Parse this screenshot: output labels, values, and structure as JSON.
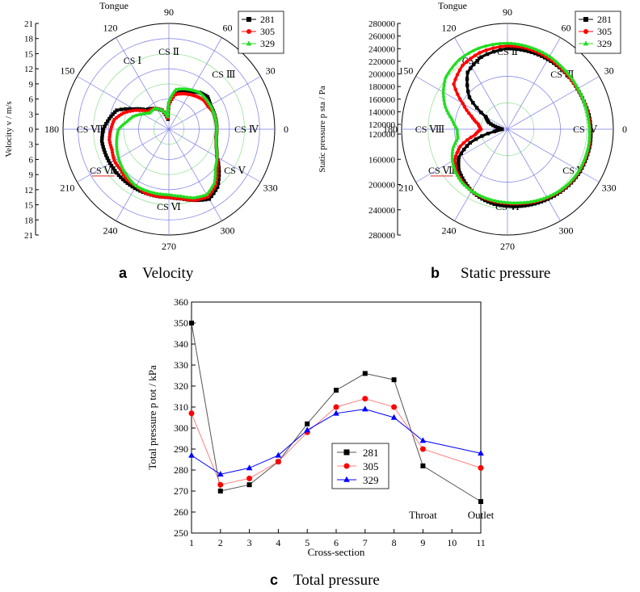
{
  "colors": {
    "s281": "#000000",
    "s305": "#ff0000",
    "s329": "#22dd22",
    "s329_line_c": "#0000ff",
    "s305_line_c": "#ff8080",
    "s281_line_c": "#555555",
    "grid_green": "#8ee08e",
    "grid_blue": "#7a7ae6",
    "underline": "#e05050"
  },
  "icons": {
    "s281": "square-marker-icon",
    "s305": "circle-marker-icon",
    "s329": "triangle-marker-icon"
  },
  "chart_data": [
    {
      "id": "a",
      "type": "line",
      "coordinate_system": "polar",
      "caption_letter": "a",
      "caption_text": "Velocity",
      "radial_label": "Velocity v / m/s",
      "radial_ticks": [
        0,
        3,
        6,
        9,
        12,
        15,
        18,
        21
      ],
      "radial_range": [
        0,
        21
      ],
      "angle_ticks": [
        "0",
        "30",
        "60",
        "90",
        "120",
        "150",
        "180",
        "210",
        "240",
        "270",
        "300",
        "330"
      ],
      "top_label": "Tongue",
      "cs_labels": [
        {
          "text": "CS Ⅱ",
          "angle": 90
        },
        {
          "text": "CS Ⅰ",
          "angle": 118
        },
        {
          "text": "CS Ⅲ",
          "angle": 45
        },
        {
          "text": "CS Ⅳ",
          "angle": 0
        },
        {
          "text": "CS Ⅴ",
          "angle": -32
        },
        {
          "text": "CS Ⅵ",
          "angle": -90
        },
        {
          "text": "CS Ⅶ",
          "angle": 212,
          "underline": true
        },
        {
          "text": "CS Ⅷ",
          "angle": 180
        }
      ],
      "legend": [
        "281",
        "305",
        "329"
      ],
      "legend_position": "top-right",
      "series": [
        {
          "name": "281",
          "theta": [
            95,
            110,
            125,
            140,
            150,
            160,
            170,
            180,
            190,
            200,
            210,
            220,
            230,
            240,
            250,
            260,
            270,
            280,
            290,
            300,
            310,
            320,
            330,
            340,
            350,
            0,
            10,
            20,
            30,
            40,
            50,
            60,
            70,
            80,
            90
          ],
          "r": [
            2,
            4,
            5,
            6,
            8,
            11,
            12,
            13,
            13.5,
            13.5,
            13.5,
            13.5,
            13.5,
            13.5,
            13.5,
            13.5,
            13.5,
            14,
            15,
            16,
            15,
            13,
            11,
            10,
            9.5,
            9.5,
            9.5,
            9.5,
            9.5,
            10,
            9.5,
            8.5,
            8,
            7,
            5
          ]
        },
        {
          "name": "305",
          "theta": [
            95,
            110,
            125,
            140,
            150,
            160,
            170,
            180,
            190,
            200,
            210,
            220,
            230,
            240,
            250,
            260,
            270,
            280,
            290,
            300,
            310,
            320,
            330,
            340,
            350,
            0,
            10,
            20,
            30,
            40,
            50,
            60,
            70,
            80,
            90
          ],
          "r": [
            2.2,
            4,
            5,
            5.5,
            7.5,
            9.5,
            11,
            11.5,
            12,
            12,
            12.5,
            12.5,
            13,
            13,
            13.5,
            13.5,
            13.5,
            14,
            15,
            15.5,
            14.5,
            12.5,
            11,
            10,
            9.5,
            9.5,
            9.5,
            9.5,
            9,
            9,
            8.5,
            8,
            7.5,
            7,
            5
          ]
        },
        {
          "name": "329",
          "theta": [
            95,
            110,
            125,
            140,
            150,
            160,
            170,
            180,
            190,
            200,
            210,
            220,
            230,
            240,
            250,
            260,
            270,
            280,
            290,
            300,
            310,
            320,
            330,
            340,
            350,
            0,
            10,
            20,
            30,
            40,
            50,
            60,
            70,
            80,
            90
          ],
          "r": [
            2.5,
            4,
            5,
            5,
            6,
            7.5,
            8.5,
            10,
            10.5,
            11,
            11.5,
            12,
            12.5,
            13,
            13,
            13,
            13,
            13.5,
            14.5,
            15,
            14,
            12,
            11,
            10,
            9.5,
            9.5,
            9.5,
            9.5,
            9.5,
            9.5,
            9.5,
            9,
            8.5,
            8,
            5.5
          ]
        }
      ]
    },
    {
      "id": "b",
      "type": "line",
      "coordinate_system": "polar",
      "caption_letter": "b",
      "caption_text": "Static pressure",
      "radial_label": "Static pressure p sta / Pa",
      "radial_ticks": [
        120000,
        160000,
        200000,
        240000,
        280000
      ],
      "radial_range": [
        120000,
        280000
      ],
      "radial_top_ticks": [
        "120000",
        "140000",
        "160000",
        "180000",
        "200000",
        "220000",
        "240000",
        "260000",
        "280000"
      ],
      "radial_bottom_ticks": [
        "120000",
        "160000",
        "200000",
        "240000",
        "280000"
      ],
      "angle_ticks": [
        "0",
        "30",
        "60",
        "90",
        "120",
        "150",
        "180",
        "210",
        "240",
        "270",
        "300",
        "330"
      ],
      "top_label": "Tongue",
      "cs_labels": [
        {
          "text": "CS Ⅱ",
          "angle": 90
        },
        {
          "text": "CS Ⅰ",
          "angle": 118
        },
        {
          "text": "CS Ⅲ",
          "angle": 45
        },
        {
          "text": "CS Ⅳ",
          "angle": 0
        },
        {
          "text": "CS Ⅴ",
          "angle": -32
        },
        {
          "text": "CS Ⅵ",
          "angle": -90
        },
        {
          "text": "CS Ⅶ",
          "angle": 212,
          "underline": true
        },
        {
          "text": "CS Ⅷ",
          "angle": 180
        }
      ],
      "legend": [
        "281",
        "305",
        "329"
      ],
      "legend_position": "top-right",
      "series": [
        {
          "name": "281",
          "theta": [
            90,
            110,
            125,
            140,
            150,
            160,
            170,
            180,
            190,
            200,
            210,
            220,
            230,
            240,
            250,
            260,
            270,
            280,
            290,
            300,
            310,
            320,
            330,
            340,
            350,
            0,
            10,
            20,
            30,
            40,
            50,
            60,
            70,
            80
          ],
          "r": [
            242000,
            236000,
            225000,
            195000,
            158000,
            150000,
            135000,
            128000,
            140000,
            180000,
            205000,
            216000,
            222000,
            228000,
            232000,
            235000,
            236000,
            238000,
            240000,
            242000,
            244000,
            246000,
            247000,
            247000,
            247000,
            246000,
            245000,
            243000,
            242000,
            242000,
            242000,
            242000,
            242000,
            242000
          ]
        },
        {
          "name": "305",
          "theta": [
            90,
            110,
            125,
            140,
            150,
            160,
            170,
            180,
            190,
            200,
            210,
            220,
            230,
            240,
            250,
            260,
            270,
            280,
            290,
            300,
            310,
            320,
            330,
            340,
            350,
            0,
            10,
            20,
            30,
            40,
            50,
            60,
            70,
            80
          ],
          "r": [
            246000,
            243000,
            238000,
            226000,
            198000,
            178000,
            165000,
            160000,
            170000,
            196000,
            212000,
            220000,
            225000,
            228000,
            230000,
            231000,
            232000,
            234000,
            237000,
            240000,
            243000,
            245000,
            246000,
            246000,
            246000,
            245000,
            244000,
            243000,
            242000,
            242000,
            243000,
            244000,
            245000,
            246000
          ]
        },
        {
          "name": "329",
          "theta": [
            90,
            110,
            125,
            140,
            150,
            160,
            170,
            180,
            190,
            200,
            210,
            220,
            230,
            240,
            250,
            260,
            270,
            280,
            290,
            300,
            310,
            320,
            330,
            340,
            350,
            0,
            10,
            20,
            30,
            40,
            50,
            60,
            70,
            80
          ],
          "r": [
            250000,
            250000,
            248000,
            242000,
            232000,
            220000,
            205000,
            196000,
            196000,
            208000,
            216000,
            222000,
            226000,
            228000,
            229000,
            230000,
            231000,
            233000,
            236000,
            239000,
            242000,
            244000,
            245000,
            245000,
            245000,
            244000,
            243000,
            243000,
            243000,
            244000,
            245000,
            247000,
            248000,
            249000
          ]
        }
      ]
    },
    {
      "id": "c",
      "type": "line",
      "caption_letter": "c",
      "caption_text": "Total pressure",
      "xlabel": "Cross-section",
      "ylabel": "Total pressure p tot / kPa",
      "x": [
        1,
        2,
        3,
        4,
        5,
        6,
        7,
        8,
        9,
        11
      ],
      "x_ticks": [
        "1",
        "2",
        "3",
        "4",
        "5",
        "6",
        "7",
        "8",
        "9",
        "10",
        "11"
      ],
      "xlim": [
        1,
        11
      ],
      "ylim": [
        250,
        360
      ],
      "y_ticks": [
        250,
        260,
        270,
        280,
        290,
        300,
        310,
        320,
        330,
        340,
        350,
        360
      ],
      "annotations": [
        {
          "text": "Throat",
          "x": 9,
          "y": 262
        },
        {
          "text": "Outlet",
          "x": 11,
          "y": 262
        }
      ],
      "legend": [
        "281",
        "305",
        "329"
      ],
      "legend_position": "center-right",
      "series": [
        {
          "name": "281",
          "values": [
            350,
            270,
            273,
            284,
            302,
            318,
            326,
            323,
            282,
            265
          ]
        },
        {
          "name": "305",
          "values": [
            307,
            273,
            276,
            284,
            298,
            310,
            314,
            310,
            290,
            281
          ]
        },
        {
          "name": "329",
          "values": [
            287,
            278,
            281,
            287,
            299,
            307,
            309,
            305,
            294,
            288
          ]
        }
      ]
    }
  ]
}
